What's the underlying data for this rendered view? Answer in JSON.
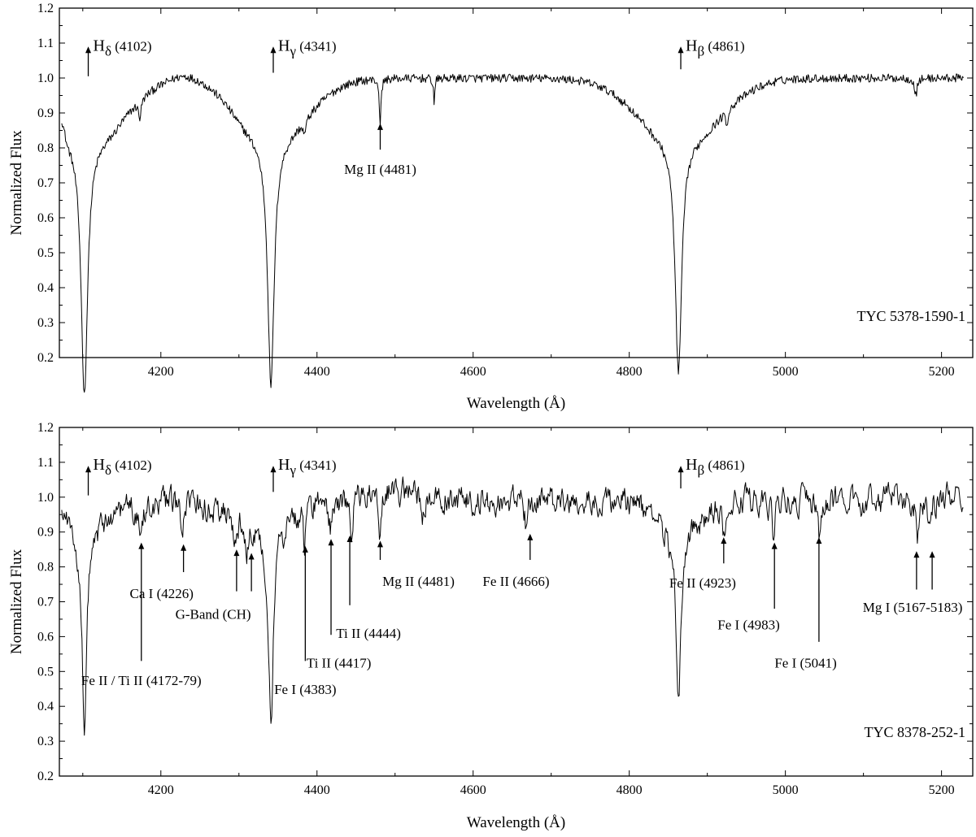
{
  "chart_data": [
    {
      "type": "line",
      "title": "",
      "xlabel": "Wavelength (Å)",
      "ylabel": "Normalized Flux",
      "xlim": [
        4070,
        5240
      ],
      "ylim": [
        0.2,
        1.2
      ],
      "x_ticks": [
        4200,
        4400,
        4600,
        4800,
        5000,
        5200
      ],
      "y_ticks": [
        0.2,
        0.3,
        0.4,
        0.5,
        0.6,
        0.7,
        0.8,
        0.9,
        1.0,
        1.1,
        1.2
      ],
      "grid": false,
      "legend": "none",
      "star_label": "TYC 5378-1590-1",
      "noise_level": 0.012,
      "continuum": [
        [
          4070,
          1.07
        ],
        [
          4080,
          1.0
        ],
        [
          4140,
          0.98
        ],
        [
          4200,
          1.0
        ],
        [
          4230,
          1.02
        ],
        [
          4280,
          1.01
        ],
        [
          4300,
          1.0
        ],
        [
          4400,
          1.0
        ],
        [
          4600,
          1.0
        ],
        [
          4800,
          1.0
        ],
        [
          4900,
          0.99
        ],
        [
          5000,
          1.0
        ],
        [
          5230,
          1.0
        ]
      ],
      "lines": [
        {
          "center": 4102,
          "depth": 0.72,
          "core": 5,
          "wing": 45,
          "wingdepth": 0.18
        },
        {
          "center": 4341,
          "depth": 0.7,
          "core": 5,
          "wing": 45,
          "wingdepth": 0.18
        },
        {
          "center": 4863,
          "depth": 0.66,
          "core": 5,
          "wing": 50,
          "wingdepth": 0.18
        },
        {
          "center": 4481,
          "depth": 0.14,
          "core": 1.2
        },
        {
          "center": 4550,
          "depth": 0.07,
          "core": 1.0
        },
        {
          "center": 4173,
          "depth": 0.05,
          "core": 2.0
        },
        {
          "center": 5167,
          "depth": 0.05,
          "core": 2.0
        },
        {
          "center": 4384,
          "depth": 0.04,
          "core": 2.0
        },
        {
          "center": 4925,
          "depth": 0.04,
          "core": 1.5
        }
      ],
      "annotations": [
        {
          "label": "H",
          "sub": "δ",
          "rest": " (4102)",
          "x": 4107,
          "dir": "up",
          "y_tail": 1.005,
          "y_head": 1.09
        },
        {
          "label": "H",
          "sub": "γ",
          "rest": " (4341)",
          "x": 4344,
          "dir": "up",
          "y_tail": 1.015,
          "y_head": 1.09
        },
        {
          "label": "H",
          "sub": "β",
          "rest": " (4861)",
          "x": 4866,
          "dir": "up",
          "y_tail": 1.025,
          "y_head": 1.09
        },
        {
          "label": "Mg II (4481)",
          "x": 4481,
          "dir": "up",
          "y_tail": 0.795,
          "y_head": 0.87,
          "text_y": 0.74
        }
      ]
    },
    {
      "type": "line",
      "title": "",
      "xlabel": "Wavelength (Å)",
      "ylabel": "Normalized Flux",
      "xlim": [
        4070,
        5240
      ],
      "ylim": [
        0.2,
        1.2
      ],
      "x_ticks": [
        4200,
        4400,
        4600,
        4800,
        5000,
        5200
      ],
      "y_ticks": [
        0.2,
        0.3,
        0.4,
        0.5,
        0.6,
        0.7,
        0.8,
        0.9,
        1.0,
        1.1,
        1.2
      ],
      "grid": false,
      "legend": "none",
      "star_label": "TYC 8378-252-1",
      "noise_level": 0.035,
      "continuum": [
        [
          4070,
          1.0
        ],
        [
          4100,
          0.96
        ],
        [
          4200,
          0.99
        ],
        [
          4300,
          0.96
        ],
        [
          4400,
          0.99
        ],
        [
          4500,
          1.02
        ],
        [
          4600,
          0.99
        ],
        [
          4700,
          0.99
        ],
        [
          4800,
          0.99
        ],
        [
          4900,
          0.99
        ],
        [
          5000,
          0.99
        ],
        [
          5100,
          0.99
        ],
        [
          5230,
          1.0
        ]
      ],
      "lines": [
        {
          "center": 4102,
          "depth": 0.52,
          "core": 3.5,
          "wing": 20,
          "wingdepth": 0.08
        },
        {
          "center": 4341,
          "depth": 0.52,
          "core": 3.5,
          "wing": 20,
          "wingdepth": 0.08
        },
        {
          "center": 4863,
          "depth": 0.5,
          "core": 3.5,
          "wing": 25,
          "wingdepth": 0.1
        },
        {
          "center": 4174,
          "depth": 0.1,
          "core": 2.5
        },
        {
          "center": 4227,
          "depth": 0.1,
          "core": 2.0
        },
        {
          "center": 4295,
          "depth": 0.1,
          "core": 3.0
        },
        {
          "center": 4310,
          "depth": 0.1,
          "core": 3.0
        },
        {
          "center": 4384,
          "depth": 0.11,
          "core": 2.0
        },
        {
          "center": 4417,
          "depth": 0.08,
          "core": 2.0
        },
        {
          "center": 4444,
          "depth": 0.08,
          "core": 2.0
        },
        {
          "center": 4481,
          "depth": 0.11,
          "core": 1.8
        },
        {
          "center": 4535,
          "depth": 0.07,
          "core": 2.0
        },
        {
          "center": 4668,
          "depth": 0.08,
          "core": 2.0
        },
        {
          "center": 4921,
          "depth": 0.09,
          "core": 2.0
        },
        {
          "center": 4985,
          "depth": 0.11,
          "core": 2.0
        },
        {
          "center": 5043,
          "depth": 0.1,
          "core": 2.0
        },
        {
          "center": 5169,
          "depth": 0.11,
          "core": 2.5
        },
        {
          "center": 5184,
          "depth": 0.08,
          "core": 2.0
        }
      ],
      "annotations": [
        {
          "label": "H",
          "sub": "δ",
          "rest": " (4102)",
          "x": 4107,
          "dir": "up",
          "y_tail": 1.005,
          "y_head": 1.09
        },
        {
          "label": "H",
          "sub": "γ",
          "rest": " (4341)",
          "x": 4344,
          "dir": "up",
          "y_tail": 1.015,
          "y_head": 1.09
        },
        {
          "label": "H",
          "sub": "β",
          "rest": " (4861)",
          "x": 4866,
          "dir": "up",
          "y_tail": 1.025,
          "y_head": 1.09
        },
        {
          "label": "Fe II / Ti II (4172-79)",
          "x": 4175,
          "dir": "up",
          "y_tail": 0.53,
          "y_head": 0.87,
          "text_x": 4175,
          "text_y": 0.475
        },
        {
          "label": "Ca I (4226)",
          "x": 4229,
          "dir": "up",
          "y_tail": 0.785,
          "y_head": 0.865,
          "text_x": 4201,
          "text_y": 0.725
        },
        {
          "label": "G-Band (CH)",
          "x": 4297,
          "dir": "up",
          "y_tail": 0.73,
          "y_head": 0.85,
          "text_x": 4267,
          "text_y": 0.665
        },
        {
          "label": "",
          "x": 4316,
          "dir": "up",
          "y_tail": 0.73,
          "y_head": 0.84
        },
        {
          "label": "Fe I (4383)",
          "x": 4385,
          "dir": "up",
          "y_tail": 0.53,
          "y_head": 0.86,
          "text_x": 4385,
          "text_y": 0.45
        },
        {
          "label": "Ti II (4417)",
          "x": 4418,
          "dir": "up",
          "y_tail": 0.605,
          "y_head": 0.88,
          "text_x": 4428,
          "text_y": 0.525
        },
        {
          "label": "Ti II (4444)",
          "x": 4442,
          "dir": "up",
          "y_tail": 0.69,
          "y_head": 0.89,
          "text_x": 4466,
          "text_y": 0.61
        },
        {
          "label": "Mg II (4481)",
          "x": 4481,
          "dir": "up",
          "y_tail": 0.82,
          "y_head": 0.875,
          "text_x": 4530,
          "text_y": 0.76
        },
        {
          "label": "Fe II (4666)",
          "x": 4673,
          "dir": "up",
          "y_tail": 0.82,
          "y_head": 0.895,
          "text_x": 4655,
          "text_y": 0.76
        },
        {
          "label": "Fe II (4923)",
          "x": 4921,
          "dir": "up",
          "y_tail": 0.81,
          "y_head": 0.885,
          "text_x": 4894,
          "text_y": 0.755
        },
        {
          "label": "Fe I (4983)",
          "x": 4986,
          "dir": "up",
          "y_tail": 0.68,
          "y_head": 0.87,
          "text_x": 4953,
          "text_y": 0.635
        },
        {
          "label": "Fe I (5041)",
          "x": 5043,
          "dir": "up",
          "y_tail": 0.585,
          "y_head": 0.885,
          "text_x": 5026,
          "text_y": 0.525
        },
        {
          "label": "Mg I (5167-5183)",
          "x": 5168,
          "dir": "up",
          "y_tail": 0.735,
          "y_head": 0.845,
          "text_x": 5163,
          "text_y": 0.685
        },
        {
          "label": "",
          "x": 5188,
          "dir": "up",
          "y_tail": 0.735,
          "y_head": 0.845
        }
      ]
    }
  ]
}
